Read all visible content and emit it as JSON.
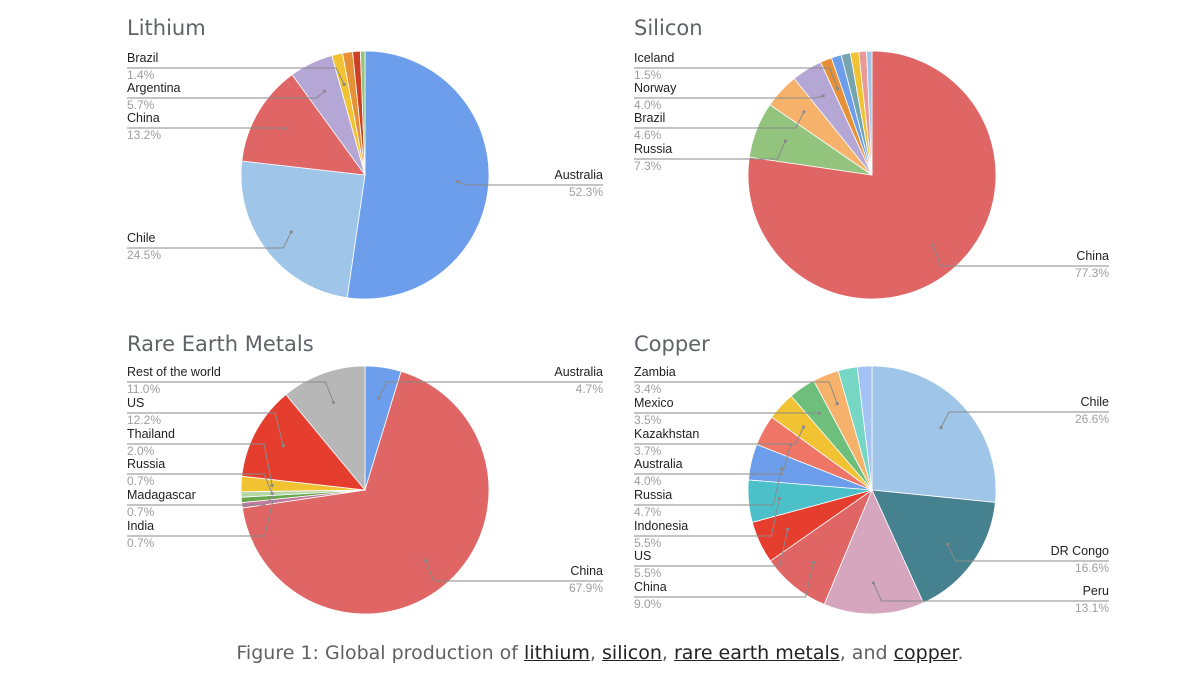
{
  "chart_data": [
    {
      "type": "pie",
      "title": "Lithium",
      "slices": [
        {
          "label": "Australia",
          "value": 52.3,
          "display": "52.3%",
          "color": "#6d9eeb"
        },
        {
          "label": "Chile",
          "value": 24.5,
          "display": "24.5%",
          "color": "#9fc5e8"
        },
        {
          "label": "China",
          "value": 13.2,
          "display": "13.2%",
          "color": "#e06666"
        },
        {
          "label": "Argentina",
          "value": 5.7,
          "display": "5.7%",
          "color": "#b4a7d6"
        },
        {
          "label": "Brazil",
          "value": 1.4,
          "display": "1.4%",
          "color": "#f1c232"
        },
        {
          "label": "",
          "value": 1.3,
          "display": "",
          "color": "#e69138"
        },
        {
          "label": "",
          "value": 1.0,
          "display": "",
          "color": "#cc4125"
        },
        {
          "label": "",
          "value": 0.6,
          "display": "",
          "color": "#93c47d"
        }
      ]
    },
    {
      "type": "pie",
      "title": "Silicon",
      "slices": [
        {
          "label": "China",
          "value": 77.3,
          "display": "77.3%",
          "color": "#e06666"
        },
        {
          "label": "Russia",
          "value": 7.3,
          "display": "7.3%",
          "color": "#93c47d"
        },
        {
          "label": "Brazil",
          "value": 4.6,
          "display": "4.6%",
          "color": "#f6b26b"
        },
        {
          "label": "Norway",
          "value": 4.0,
          "display": "4.0%",
          "color": "#b4a7d6"
        },
        {
          "label": "Iceland",
          "value": 1.5,
          "display": "1.5%",
          "color": "#e69138"
        },
        {
          "label": "",
          "value": 1.3,
          "display": "",
          "color": "#6d9eeb"
        },
        {
          "label": "",
          "value": 1.2,
          "display": "",
          "color": "#76a5af"
        },
        {
          "label": "",
          "value": 1.1,
          "display": "",
          "color": "#f1c232"
        },
        {
          "label": "",
          "value": 1.0,
          "display": "",
          "color": "#ea9999"
        },
        {
          "label": "",
          "value": 0.7,
          "display": "",
          "color": "#9fc5e8"
        }
      ]
    },
    {
      "type": "pie",
      "title": "Rare Earth Metals",
      "slices": [
        {
          "label": "Australia",
          "value": 4.7,
          "display": "4.7%",
          "color": "#6d9eeb"
        },
        {
          "label": "China",
          "value": 67.9,
          "display": "67.9%",
          "color": "#e06666"
        },
        {
          "label": "India",
          "value": 0.7,
          "display": "0.7%",
          "color": "#c27ba0"
        },
        {
          "label": "Madagascar",
          "value": 0.7,
          "display": "0.7%",
          "color": "#6aa84f"
        },
        {
          "label": "Russia",
          "value": 0.7,
          "display": "0.7%",
          "color": "#b6d7a8"
        },
        {
          "label": "Thailand",
          "value": 2.0,
          "display": "2.0%",
          "color": "#f1c232"
        },
        {
          "label": "US",
          "value": 12.2,
          "display": "12.2%",
          "color": "#e53e2e"
        },
        {
          "label": "Rest of the world",
          "value": 11.0,
          "display": "11.0%",
          "color": "#b7b7b7"
        }
      ]
    },
    {
      "type": "pie",
      "title": "Copper",
      "slices": [
        {
          "label": "Chile",
          "value": 26.6,
          "display": "26.6%",
          "color": "#9fc5e8"
        },
        {
          "label": "DR Congo",
          "value": 16.6,
          "display": "16.6%",
          "color": "#45818e"
        },
        {
          "label": "Peru",
          "value": 13.1,
          "display": "13.1%",
          "color": "#d5a6bd"
        },
        {
          "label": "China",
          "value": 9.0,
          "display": "9.0%",
          "color": "#e06666"
        },
        {
          "label": "US",
          "value": 5.5,
          "display": "5.5%",
          "color": "#e53e2e"
        },
        {
          "label": "Indonesia",
          "value": 5.5,
          "display": "5.5%",
          "color": "#4bc0c8"
        },
        {
          "label": "Russia",
          "value": 4.7,
          "display": "4.7%",
          "color": "#6d9eeb"
        },
        {
          "label": "Australia",
          "value": 4.0,
          "display": "4.0%",
          "color": "#ef7566"
        },
        {
          "label": "Kazakhstan",
          "value": 3.7,
          "display": "3.7%",
          "color": "#f1c232"
        },
        {
          "label": "Mexico",
          "value": 3.5,
          "display": "3.5%",
          "color": "#6ebf7b"
        },
        {
          "label": "Zambia",
          "value": 3.4,
          "display": "3.4%",
          "color": "#f6b26b"
        },
        {
          "label": "",
          "value": 2.5,
          "display": "",
          "color": "#76d7c4"
        },
        {
          "label": "",
          "value": 1.9,
          "display": "",
          "color": "#a4c2f4"
        }
      ]
    }
  ],
  "caption": {
    "prefix": "Figure 1: Global production of ",
    "link1": "lithium",
    "sep1": ", ",
    "link2": "silicon",
    "sep2": ", ",
    "link3": "rare earth metals",
    "sep3": ", and ",
    "link4": "copper",
    "suffix": "."
  }
}
